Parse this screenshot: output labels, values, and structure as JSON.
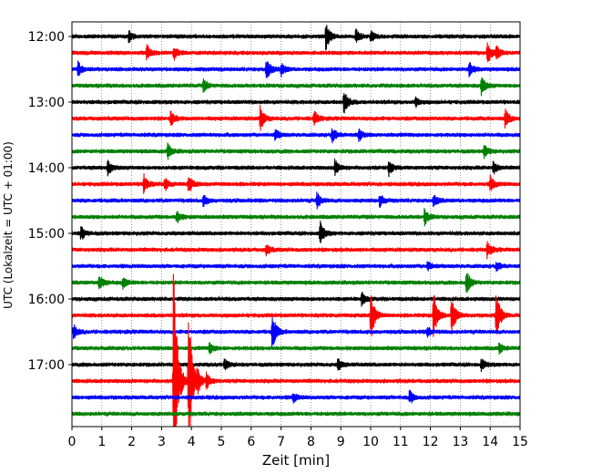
{
  "chart_data": {
    "type": "line",
    "title": "",
    "xlabel": "Zeit  [min]",
    "ylabel": "UTC (Lokalzeit = UTC + 01:00)",
    "xlim": [
      0,
      15
    ],
    "x_ticks": [
      "0",
      "1",
      "2",
      "3",
      "4",
      "5",
      "6",
      "7",
      "8",
      "9",
      "10",
      "11",
      "12",
      "13",
      "14",
      "15"
    ],
    "y_ticks": [
      {
        "label": "12:00",
        "row": 0
      },
      {
        "label": "13:00",
        "row": 4
      },
      {
        "label": "14:00",
        "row": 8
      },
      {
        "label": "15:00",
        "row": 12
      },
      {
        "label": "16:00",
        "row": 16
      },
      {
        "label": "17:00",
        "row": 20
      }
    ],
    "grid_x": true,
    "row_interval_minutes": 15,
    "row_colors": [
      "#000000",
      "#ff0000",
      "#0000ff",
      "#008000"
    ],
    "rows": [
      {
        "time": "12:00",
        "events": [
          {
            "x": 1.9,
            "a": 0.35
          },
          {
            "x": 8.5,
            "a": 0.9
          },
          {
            "x": 9.5,
            "a": 0.4
          },
          {
            "x": 10.0,
            "a": 0.35
          }
        ]
      },
      {
        "time": "12:15",
        "events": [
          {
            "x": 2.5,
            "a": 0.55
          },
          {
            "x": 3.4,
            "a": 0.45
          },
          {
            "x": 13.9,
            "a": 0.7
          },
          {
            "x": 14.2,
            "a": 0.4
          }
        ]
      },
      {
        "time": "12:30",
        "events": [
          {
            "x": 0.2,
            "a": 0.45
          },
          {
            "x": 6.5,
            "a": 0.75
          },
          {
            "x": 7.0,
            "a": 0.4
          },
          {
            "x": 13.3,
            "a": 0.45
          }
        ]
      },
      {
        "time": "12:45",
        "events": [
          {
            "x": 4.4,
            "a": 0.4
          },
          {
            "x": 13.7,
            "a": 0.6
          }
        ]
      },
      {
        "time": "13:00",
        "events": [
          {
            "x": 9.1,
            "a": 0.75
          },
          {
            "x": 11.5,
            "a": 0.3
          }
        ]
      },
      {
        "time": "13:15",
        "events": [
          {
            "x": 3.3,
            "a": 0.45
          },
          {
            "x": 6.3,
            "a": 0.8
          },
          {
            "x": 8.1,
            "a": 0.5
          },
          {
            "x": 14.5,
            "a": 0.6
          }
        ]
      },
      {
        "time": "13:30",
        "events": [
          {
            "x": 6.8,
            "a": 0.35
          },
          {
            "x": 8.7,
            "a": 0.5
          },
          {
            "x": 9.6,
            "a": 0.35
          }
        ]
      },
      {
        "time": "13:45",
        "events": [
          {
            "x": 3.2,
            "a": 0.45
          },
          {
            "x": 13.8,
            "a": 0.45
          }
        ]
      },
      {
        "time": "14:00",
        "events": [
          {
            "x": 1.2,
            "a": 0.45
          },
          {
            "x": 8.8,
            "a": 0.5
          },
          {
            "x": 10.6,
            "a": 0.5
          },
          {
            "x": 14.1,
            "a": 0.4
          }
        ]
      },
      {
        "time": "14:15",
        "events": [
          {
            "x": 2.4,
            "a": 0.6
          },
          {
            "x": 3.1,
            "a": 0.45
          },
          {
            "x": 3.9,
            "a": 0.55
          },
          {
            "x": 14.0,
            "a": 0.5
          }
        ]
      },
      {
        "time": "14:30",
        "events": [
          {
            "x": 4.4,
            "a": 0.35
          },
          {
            "x": 8.2,
            "a": 0.5
          },
          {
            "x": 10.3,
            "a": 0.4
          },
          {
            "x": 12.1,
            "a": 0.35
          }
        ]
      },
      {
        "time": "14:45",
        "events": [
          {
            "x": 3.5,
            "a": 0.4
          },
          {
            "x": 11.8,
            "a": 0.5
          }
        ]
      },
      {
        "time": "15:00",
        "events": [
          {
            "x": 0.3,
            "a": 0.45
          },
          {
            "x": 8.3,
            "a": 0.75
          }
        ]
      },
      {
        "time": "15:15",
        "events": [
          {
            "x": 6.5,
            "a": 0.35
          },
          {
            "x": 13.9,
            "a": 0.5
          }
        ]
      },
      {
        "time": "15:30",
        "events": [
          {
            "x": 11.9,
            "a": 0.3
          },
          {
            "x": 14.2,
            "a": 0.3
          }
        ]
      },
      {
        "time": "15:45",
        "events": [
          {
            "x": 0.9,
            "a": 0.55
          },
          {
            "x": 1.7,
            "a": 0.35
          },
          {
            "x": 13.2,
            "a": 0.8
          }
        ]
      },
      {
        "time": "16:00",
        "events": [
          {
            "x": 9.7,
            "a": 0.4
          }
        ]
      },
      {
        "time": "16:15",
        "events": [
          {
            "x": 10.0,
            "a": 1.6
          },
          {
            "x": 12.1,
            "a": 1.6
          },
          {
            "x": 12.7,
            "a": 1.3
          },
          {
            "x": 14.2,
            "a": 1.6
          }
        ]
      },
      {
        "time": "16:30",
        "events": [
          {
            "x": 0.05,
            "a": 0.45
          },
          {
            "x": 6.7,
            "a": 1.2
          },
          {
            "x": 11.9,
            "a": 0.3
          }
        ]
      },
      {
        "time": "16:45",
        "events": [
          {
            "x": 4.6,
            "a": 0.35
          },
          {
            "x": 14.3,
            "a": 0.3
          }
        ]
      },
      {
        "time": "17:00",
        "events": [
          {
            "x": 5.1,
            "a": 0.35
          },
          {
            "x": 8.9,
            "a": 0.35
          },
          {
            "x": 13.7,
            "a": 0.35
          }
        ]
      },
      {
        "time": "17:15",
        "events": [
          {
            "x": 3.4,
            "a": 8.0
          },
          {
            "x": 3.9,
            "a": 5.0
          },
          {
            "x": 4.2,
            "a": 0.6
          },
          {
            "x": 4.5,
            "a": 0.5
          }
        ]
      },
      {
        "time": "17:30",
        "events": [
          {
            "x": 7.4,
            "a": 0.3
          },
          {
            "x": 11.3,
            "a": 0.45
          }
        ]
      },
      {
        "time": "17:45",
        "events": []
      }
    ]
  }
}
